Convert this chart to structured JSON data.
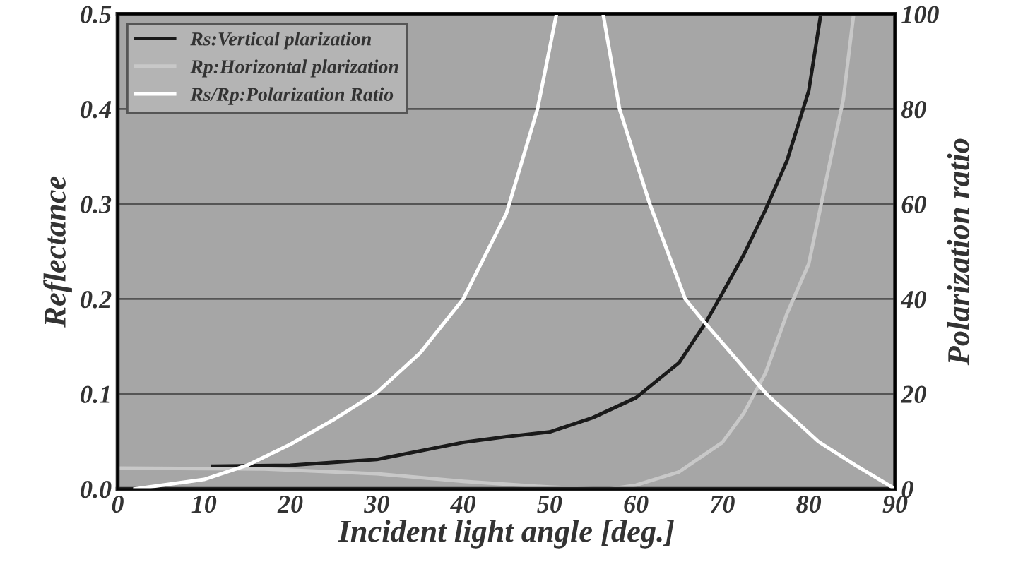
{
  "chart_data": {
    "type": "line",
    "xlabel": "Incident light angle [deg.]",
    "ylabel": "Reflectance",
    "y2label": "Polarization ratio",
    "xlim": [
      0,
      90
    ],
    "xticks": [
      0,
      10,
      20,
      30,
      40,
      50,
      60,
      70,
      80,
      90
    ],
    "ylim": [
      0,
      0.5
    ],
    "yticks": [
      {
        "value": 0,
        "label": "0.0"
      },
      0.1,
      0.2,
      0.3,
      0.4,
      0.5
    ],
    "y2lim": [
      0,
      100
    ],
    "y2ticks": [
      0,
      20,
      40,
      60,
      80,
      100
    ],
    "grid": "y",
    "legend": "top left",
    "line_style": "solid",
    "marker": "none",
    "series": [
      {
        "name": "Rs:Vertical plarization",
        "color": "#1a1a1a",
        "x": [
          11,
          20,
          30,
          40,
          45,
          50,
          55,
          60,
          65,
          68,
          70,
          72.5,
          75,
          77.5,
          80,
          81.4
        ],
        "values": [
          0.024,
          0.025,
          0.031,
          0.049,
          0.055,
          0.06,
          0.075,
          0.096,
          0.133,
          0.174,
          0.206,
          0.247,
          0.294,
          0.346,
          0.419,
          0.5
        ]
      },
      {
        "name": "Rp:Horizontal plarization",
        "color": "#c8c8c8",
        "x": [
          0,
          17,
          30,
          40,
          50,
          55,
          57,
          60,
          65,
          70,
          72.5,
          75,
          77.5,
          80,
          82.5,
          84,
          85.2
        ],
        "values": [
          0.022,
          0.021,
          0.016,
          0.008,
          0.002,
          0,
          0,
          0.004,
          0.018,
          0.049,
          0.08,
          0.122,
          0.185,
          0.237,
          0.346,
          0.41,
          0.5
        ]
      },
      {
        "name": "Rs/Rp:Polarization Ratio",
        "color": "#ffffff",
        "axis": "y2",
        "x": [
          2,
          10,
          15,
          20,
          25,
          30,
          35,
          40,
          45,
          48.6,
          50.8,
          null,
          56.2,
          58.1,
          61.6,
          65.7,
          67.5,
          75.1,
          81.1,
          85.4,
          90
        ],
        "values": [
          0,
          2,
          5,
          9.4,
          14.6,
          20.3,
          28.6,
          40,
          58,
          80,
          100,
          null,
          100,
          80,
          60,
          40,
          36,
          20,
          10,
          5,
          0
        ]
      }
    ]
  }
}
